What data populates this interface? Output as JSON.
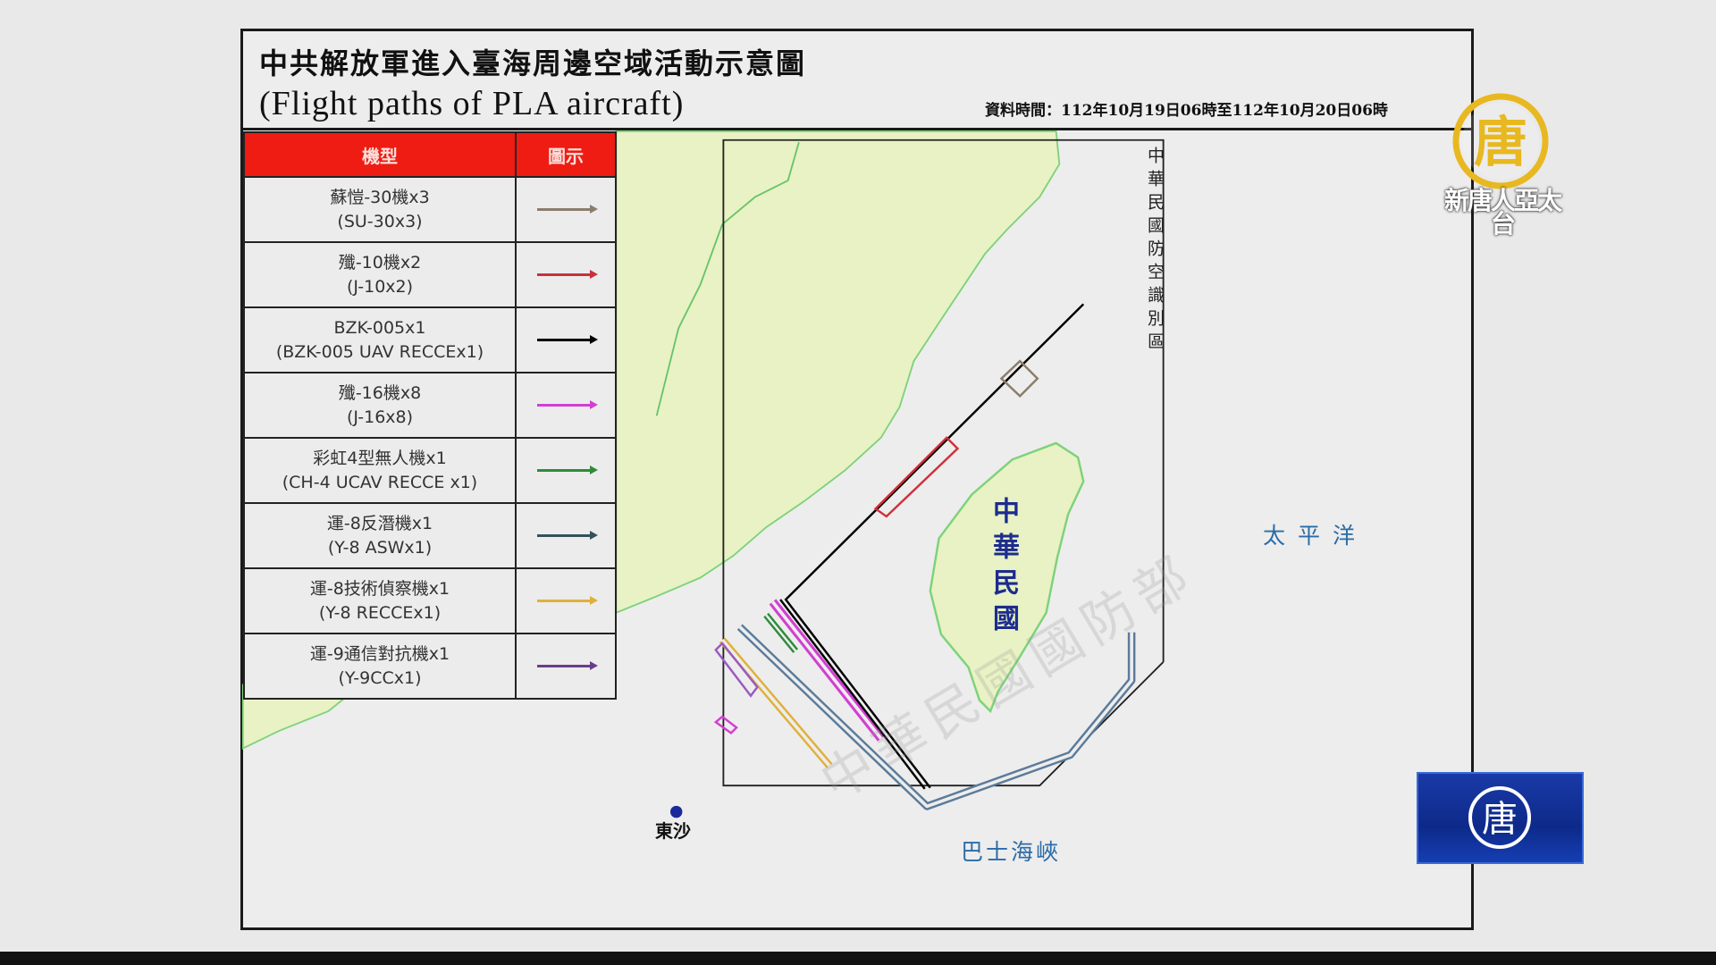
{
  "header": {
    "title": "中共解放軍進入臺海周邊空域活動示意圖",
    "subtitle": "(Flight paths of PLA aircraft)",
    "data_time": "資料時間：112年10月19日06時至112年10月20日06時"
  },
  "legend": {
    "col_type": "機型",
    "col_symbol": "圖示",
    "rows": [
      {
        "zh": "蘇愷-30機x3",
        "en": "(SU-30x3)",
        "color": "#8b7d6b"
      },
      {
        "zh": "殲-10機x2",
        "en": "(J-10x2)",
        "color": "#c8323c"
      },
      {
        "zh": "BZK-005x1",
        "en": "(BZK-005 UAV RECCEx1)",
        "color": "#000000"
      },
      {
        "zh": "殲-16機x8",
        "en": "(J-16x8)",
        "color": "#d23fd2"
      },
      {
        "zh": "彩虹4型無人機x1",
        "en": "(CH-4 UCAV RECCE x1)",
        "color": "#2e8b3a"
      },
      {
        "zh": "運-8反潛機x1",
        "en": "(Y-8 ASWx1)",
        "color": "#34505a"
      },
      {
        "zh": "運-8技術偵察機x1",
        "en": "(Y-8 RECCEx1)",
        "color": "#e0b03a"
      },
      {
        "zh": "運-9通信對抗機x1",
        "en": "(Y-9CCx1)",
        "color": "#6a3d8a"
      }
    ]
  },
  "map": {
    "adiz_label": "中華民國防空識別區",
    "taiwan_label": "中華民國",
    "pacific_label": "太平洋",
    "strait_label": "巴士海峽",
    "dongsha_label": "東沙",
    "watermark": "中華民國國防部",
    "land_color": "#e8f2c4",
    "asw_path_color": "#5b7b9a"
  },
  "broadcaster": {
    "logo_text": "新唐人亞太台",
    "logo_icon": "tang-character-emblem-icon"
  }
}
